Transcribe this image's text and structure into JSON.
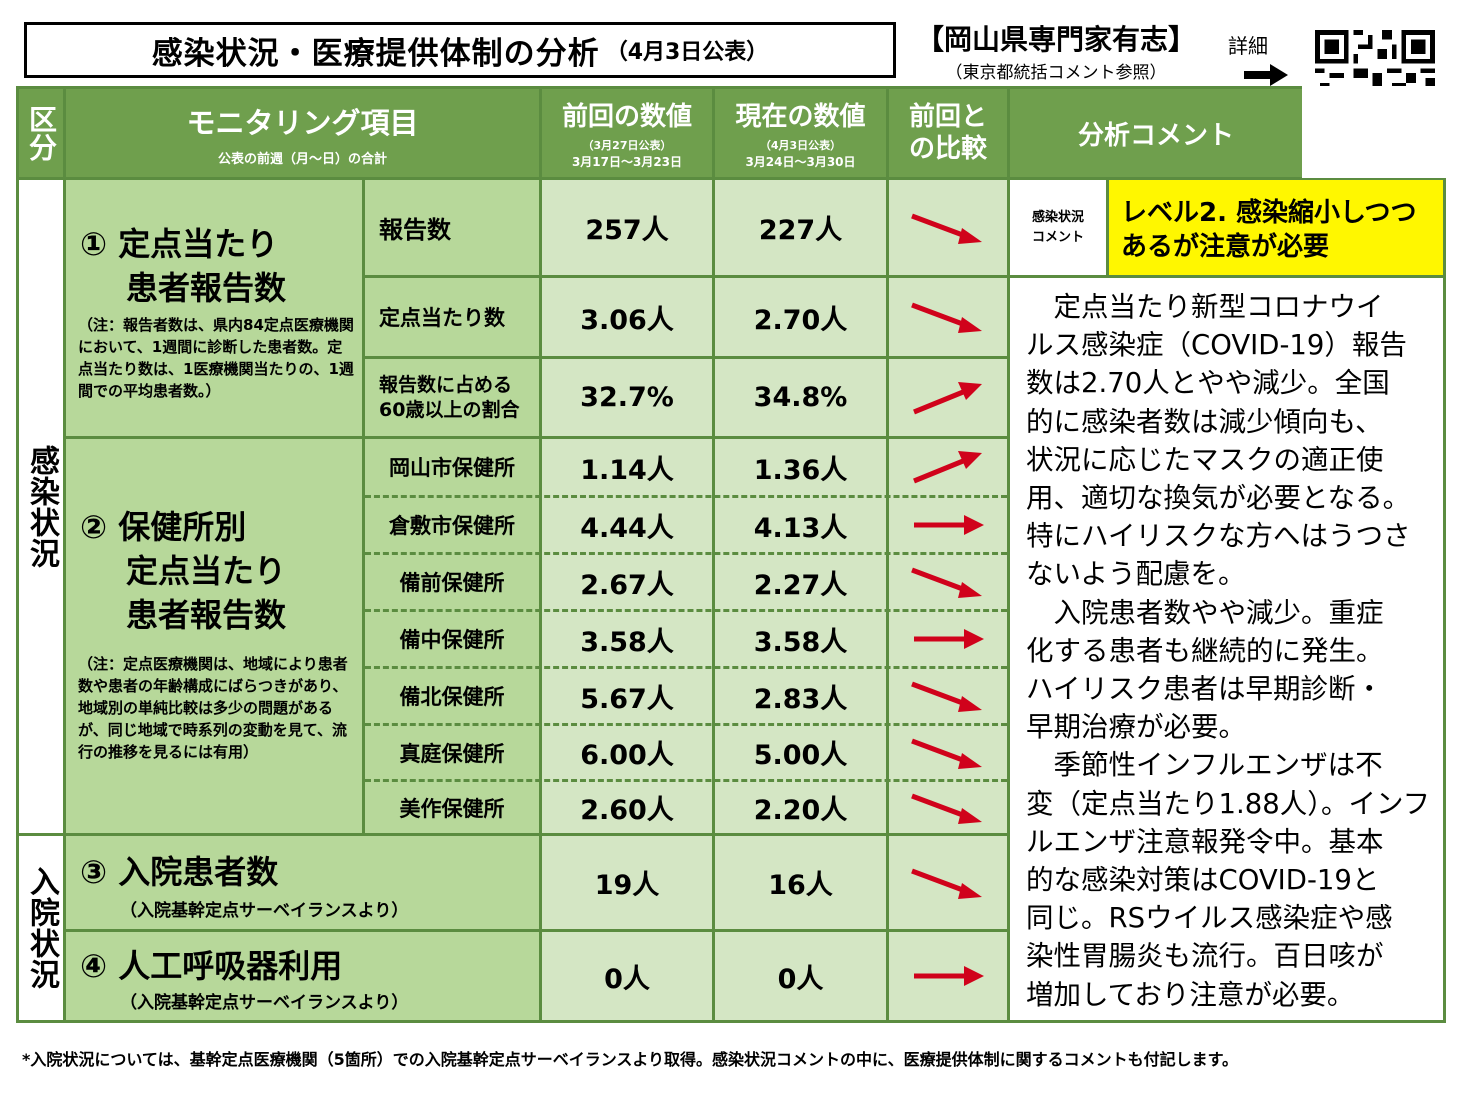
{
  "header": {
    "title": "感染状況・医療提供体制の分析",
    "title_date": "（4月3日公表）",
    "org": "【岡山県専門家有志】",
    "org_sub": "（東京都統括コメント参照）",
    "detail_label": "詳細"
  },
  "table_header": {
    "category": "区分",
    "item": "モニタリング項目",
    "item_sub": "公表の前週（月～日）の合計",
    "prev": "前回の数値",
    "prev_sub1": "（3月27日公表）",
    "prev_sub2": "3月17日～3月23日",
    "curr": "現在の数値",
    "curr_sub1": "（4月3日公表）",
    "curr_sub2": "3月24日～3月30日",
    "compare": "前回との比較",
    "analysis": "分析コメント"
  },
  "categories": {
    "infection": "感染状況",
    "hospital": "入院状況"
  },
  "section1": {
    "title_line1": "① 定点当たり",
    "title_line2": "患者報告数",
    "note": "（注：報告者数は、県内84定点医療機関において、1週間に診断した患者数。定点当たり数は、1医療機関当たりの、1週間での平均患者数。）",
    "rows": [
      {
        "label": "報告数",
        "prev": "257人",
        "curr": "227人",
        "trend": "down"
      },
      {
        "label": "定点当たり数",
        "prev": "3.06人",
        "curr": "2.70人",
        "trend": "down"
      },
      {
        "label": "報告数に占める60歳以上の割合",
        "prev": "32.7%",
        "curr": "34.8%",
        "trend": "up"
      }
    ]
  },
  "section2": {
    "title_line1": "② 保健所別",
    "title_line2": "定点当たり",
    "title_line3": "患者報告数",
    "note": "（注：定点医療機関は、地域により患者数や患者の年齢構成にばらつきがあり、地域別の単純比較は多少の問題があるが、同じ地域で時系列の変動を見て、流行の推移を見るには有用）",
    "rows": [
      {
        "label": "岡山市保健所",
        "prev": "1.14人",
        "curr": "1.36人",
        "trend": "up"
      },
      {
        "label": "倉敷市保健所",
        "prev": "4.44人",
        "curr": "4.13人",
        "trend": "flat"
      },
      {
        "label": "備前保健所",
        "prev": "2.67人",
        "curr": "2.27人",
        "trend": "down"
      },
      {
        "label": "備中保健所",
        "prev": "3.58人",
        "curr": "3.58人",
        "trend": "flat"
      },
      {
        "label": "備北保健所",
        "prev": "5.67人",
        "curr": "2.83人",
        "trend": "down"
      },
      {
        "label": "真庭保健所",
        "prev": "6.00人",
        "curr": "5.00人",
        "trend": "down"
      },
      {
        "label": "美作保健所",
        "prev": "2.60人",
        "curr": "2.20人",
        "trend": "down"
      }
    ]
  },
  "section3": {
    "title": "③ 入院患者数",
    "sub": "（入院基幹定点サーベイランスより）",
    "prev": "19人",
    "curr": "16人",
    "trend": "down"
  },
  "section4": {
    "title": "④ 人工呼吸器利用",
    "sub": "（入院基幹定点サーベイランスより）",
    "prev": "0人",
    "curr": "0人",
    "trend": "flat"
  },
  "analysis": {
    "label": "感染状況コメント",
    "level": "レベル2. 感染縮小しつつあるが注意が必要",
    "lines": [
      "　定点当たり新型コロナウイ",
      "ルス感染症（COVID-19）報告",
      "数は2.70人とやや減少。全国",
      "的に感染者数は減少傾向も、",
      "状況に応じたマスクの適正使",
      "用、適切な換気が必要となる。",
      "特にハイリスクな方へはうつさ",
      "ないよう配慮を。",
      "　入院患者数やや減少。重症",
      "化する患者も継続的に発生。",
      "ハイリスク患者は早期診断・",
      "早期治療が必要。",
      "　季節性インフルエンザは不",
      "変（定点当たり1.88人）。インフ",
      "ルエンザ注意報発令中。基本",
      "的な感染対策はCOVID-19と",
      "同じ。RSウイルス感染症や感",
      "染性胃腸炎も流行。百日咳が",
      "増加しており注意が必要。"
    ]
  },
  "footer": "*入院状況については、基幹定点医療機関（5箇所）での入院基幹定点サーベイランスより取得。感染状況コメントの中に、医療提供体制に関するコメントも付記します。",
  "colors": {
    "header_green": "#6f9f4d",
    "cell_green": "#b7d89a",
    "light_green": "#d4e6c4",
    "level_yellow": "#fff700",
    "arrow_red": "#d0021b"
  }
}
